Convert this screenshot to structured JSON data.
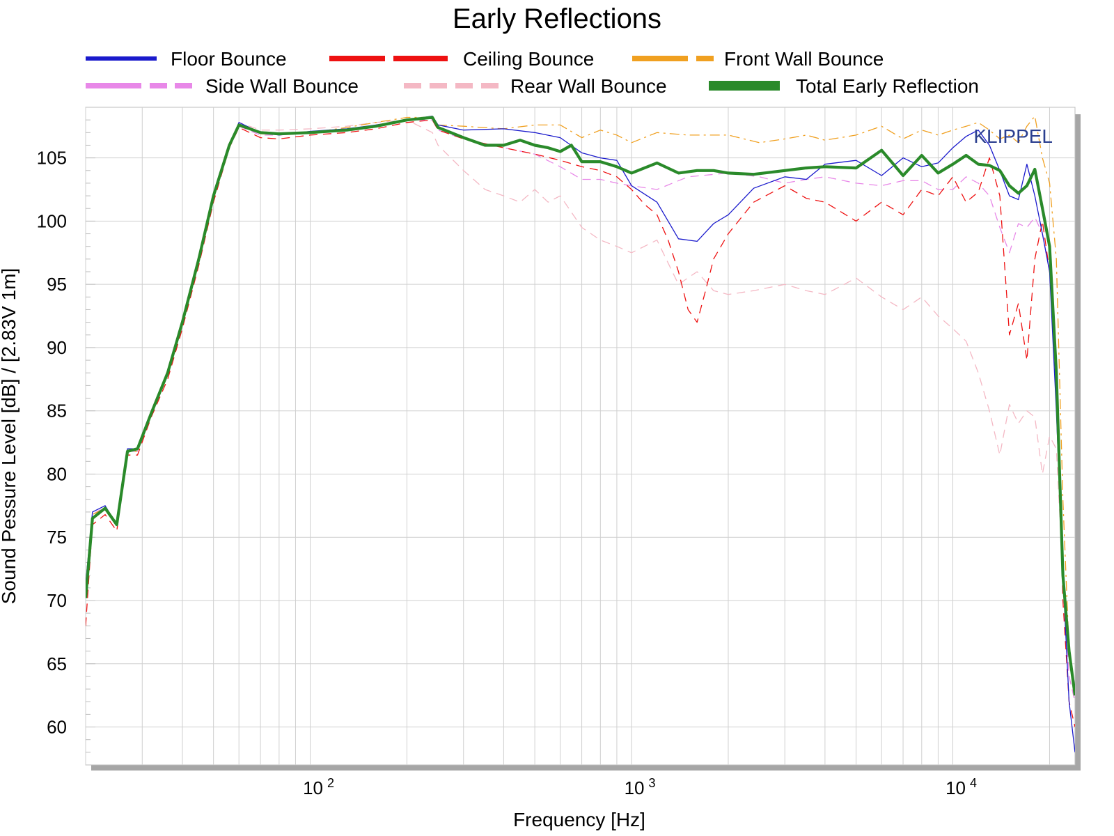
{
  "chart_data": {
    "type": "line",
    "title": "Early Reflections",
    "xlabel": "Frequency [Hz]",
    "ylabel": "Sound Pessure Level [dB]  / [2.83V 1m]",
    "x_scale": "log",
    "xlim": [
      20,
      24000
    ],
    "ylim": [
      57,
      109
    ],
    "y_ticks": [
      60,
      65,
      70,
      75,
      80,
      85,
      90,
      95,
      100,
      105
    ],
    "x_ticks": [
      {
        "value": 100,
        "base": "10",
        "exp": "2"
      },
      {
        "value": 1000,
        "base": "10",
        "exp": "3"
      },
      {
        "value": 10000,
        "base": "10",
        "exp": "4"
      }
    ],
    "grid": true,
    "legend_position": "top",
    "brand": "KLIPPEL",
    "series": [
      {
        "name": "Floor Bounce",
        "color": "#1a1acc",
        "style": "solid",
        "width": 1.3,
        "x": [
          20,
          21,
          23,
          25,
          27,
          29,
          32,
          36,
          40,
          45,
          50,
          56,
          60,
          70,
          80,
          100,
          130,
          160,
          200,
          240,
          250,
          300,
          400,
          500,
          600,
          700,
          800,
          900,
          1000,
          1200,
          1400,
          1600,
          1800,
          2000,
          2400,
          3000,
          3500,
          4000,
          5000,
          6000,
          7000,
          8000,
          9000,
          10000,
          11000,
          12000,
          13000,
          14000,
          15000,
          16000,
          17000,
          18000,
          19000,
          20000,
          21000,
          22000,
          23000,
          24000
        ],
        "y": [
          71.3,
          77,
          77.5,
          76,
          82,
          82,
          85,
          88,
          92,
          97,
          102,
          106,
          107.8,
          107,
          106.8,
          107.1,
          107.3,
          107.6,
          108,
          108.3,
          107.6,
          107.2,
          107.3,
          107,
          106.6,
          105.4,
          105,
          104.8,
          102.8,
          101.5,
          98.6,
          98.4,
          99.8,
          100.5,
          102.6,
          103.5,
          103.3,
          104.5,
          104.8,
          103.6,
          105,
          104.3,
          104.6,
          105.8,
          106.7,
          107.2,
          106,
          104,
          102,
          101.7,
          104.5,
          102,
          99,
          96,
          85,
          72,
          62,
          58
        ]
      },
      {
        "name": "Ceiling Bounce",
        "color": "#ee1111",
        "style": "dashed",
        "width": 1.3,
        "x": [
          20,
          21,
          23,
          25,
          27,
          29,
          32,
          36,
          40,
          45,
          50,
          56,
          60,
          70,
          80,
          100,
          130,
          160,
          200,
          240,
          250,
          300,
          400,
          500,
          600,
          700,
          800,
          900,
          1000,
          1100,
          1200,
          1300,
          1400,
          1500,
          1600,
          1700,
          1800,
          2000,
          2400,
          3000,
          3500,
          4000,
          5000,
          6000,
          7000,
          8000,
          9000,
          10000,
          11000,
          12000,
          13000,
          14000,
          15000,
          16000,
          17000,
          18000,
          19000,
          20000,
          21000,
          22000,
          23000,
          24000
        ],
        "y": [
          68,
          76,
          76.8,
          75.5,
          81.5,
          81.5,
          84.5,
          87.5,
          91.5,
          96.5,
          101.5,
          105.8,
          107.4,
          106.6,
          106.5,
          106.8,
          107,
          107.3,
          107.8,
          108,
          107.2,
          106.5,
          105.8,
          105.3,
          104.8,
          104.3,
          104,
          103.5,
          102.5,
          101.3,
          100.5,
          98.5,
          96,
          93,
          92,
          94.5,
          97,
          99,
          101.5,
          102.8,
          101.8,
          101.5,
          100,
          101.5,
          100.5,
          102.5,
          102,
          103.5,
          101.5,
          102.3,
          105,
          102,
          91,
          93.5,
          89,
          97,
          100,
          96,
          88,
          70,
          62,
          60
        ]
      },
      {
        "name": "Front Wall Bounce",
        "color": "#f0a020",
        "style": "dashdot",
        "width": 1.3,
        "x": [
          20,
          21,
          23,
          25,
          27,
          29,
          32,
          36,
          40,
          45,
          50,
          56,
          60,
          70,
          80,
          100,
          130,
          160,
          200,
          240,
          250,
          300,
          400,
          500,
          600,
          700,
          800,
          900,
          1000,
          1200,
          1500,
          2000,
          2500,
          3000,
          3500,
          4000,
          5000,
          6000,
          7000,
          8000,
          9000,
          10000,
          11000,
          12000,
          13000,
          14000,
          15000,
          16000,
          17000,
          18000,
          19000,
          20000,
          21000,
          22000,
          23000,
          24000
        ],
        "y": [
          70.5,
          76.8,
          77.3,
          76,
          81.8,
          81.8,
          84.8,
          88,
          92,
          97,
          102,
          105.8,
          107.7,
          106.9,
          106.9,
          107,
          107.4,
          107.8,
          108.2,
          108.2,
          107.6,
          107.5,
          107.3,
          107.6,
          107.6,
          106.6,
          107.2,
          106.8,
          106.2,
          107,
          106.8,
          106.8,
          106.2,
          106.5,
          106.8,
          106.4,
          106.8,
          107.5,
          106.5,
          107.2,
          106.8,
          107.2,
          107.5,
          107.8,
          107.2,
          106.5,
          106.8,
          106.2,
          107.5,
          108.3,
          105,
          103,
          97,
          78,
          66,
          63
        ]
      },
      {
        "name": "Side Wall Bounce",
        "color": "#e888e8",
        "style": "dashed",
        "width": 1.3,
        "x": [
          20,
          21,
          23,
          25,
          27,
          29,
          32,
          36,
          40,
          45,
          50,
          56,
          60,
          70,
          80,
          100,
          130,
          160,
          200,
          240,
          250,
          300,
          400,
          500,
          600,
          700,
          800,
          900,
          1000,
          1200,
          1500,
          2000,
          2500,
          3000,
          3500,
          4000,
          5000,
          6000,
          7000,
          8000,
          9000,
          10000,
          11000,
          12000,
          13000,
          14000,
          15000,
          16000,
          17000,
          18000,
          19000,
          20000,
          21000,
          22000,
          23000,
          24000
        ],
        "y": [
          70.3,
          76.8,
          77.4,
          76,
          81.8,
          81.8,
          84.8,
          88,
          92,
          97,
          102,
          105.8,
          107.5,
          106.8,
          106.8,
          107,
          107.2,
          107.6,
          108,
          108,
          107.2,
          106.5,
          105.8,
          105.3,
          104.3,
          103.3,
          103.3,
          103,
          102.8,
          102.5,
          103.5,
          103.8,
          103.5,
          103,
          103.3,
          103.5,
          103,
          102.8,
          103.2,
          103.2,
          102.5,
          102.5,
          103.5,
          103,
          102,
          99.5,
          97.5,
          99.8,
          99.5,
          100.3,
          99,
          96,
          88,
          72,
          64,
          62
        ]
      },
      {
        "name": "Rear Wall Bounce",
        "color": "#f4b8c4",
        "style": "dashed",
        "width": 1.3,
        "x": [
          20,
          21,
          23,
          25,
          27,
          29,
          32,
          36,
          40,
          45,
          50,
          56,
          60,
          70,
          80,
          100,
          130,
          160,
          200,
          240,
          250,
          300,
          350,
          400,
          450,
          500,
          550,
          600,
          700,
          800,
          900,
          1000,
          1200,
          1400,
          1600,
          1800,
          2000,
          2400,
          3000,
          3500,
          4000,
          5000,
          6000,
          7000,
          8000,
          9000,
          10000,
          11000,
          12000,
          13000,
          14000,
          15000,
          16000,
          17000,
          18000,
          19000,
          20000,
          21000,
          22000,
          23000,
          24000
        ],
        "y": [
          70.3,
          76.8,
          77.4,
          76,
          81.8,
          81.8,
          84.8,
          88,
          92,
          97,
          102,
          106,
          107.8,
          107.2,
          107.2,
          107.3,
          107.5,
          107.8,
          108,
          107,
          106,
          104,
          102.5,
          102,
          101.5,
          102.5,
          101.5,
          102,
          99.5,
          98.5,
          98,
          97.5,
          98.5,
          95,
          96,
          94.5,
          94.2,
          94.5,
          95,
          94.5,
          94.2,
          95.5,
          94,
          93,
          94,
          92.5,
          91.5,
          90.5,
          88,
          85,
          81.5,
          85.5,
          84,
          85,
          84.5,
          80,
          83,
          82,
          72,
          64,
          62
        ]
      },
      {
        "name": "Total Early Reflection",
        "color": "#2a8a2a",
        "style": "solid",
        "width": 4.2,
        "x": [
          20,
          21,
          23,
          25,
          27,
          29,
          32,
          36,
          40,
          45,
          50,
          56,
          60,
          70,
          80,
          100,
          130,
          160,
          200,
          240,
          250,
          300,
          350,
          400,
          450,
          500,
          550,
          600,
          650,
          700,
          800,
          900,
          1000,
          1200,
          1400,
          1600,
          1800,
          2000,
          2400,
          3000,
          3500,
          4000,
          5000,
          6000,
          7000,
          8000,
          9000,
          10000,
          11000,
          12000,
          13000,
          14000,
          15000,
          16000,
          17000,
          18000,
          19000,
          20000,
          21000,
          22000,
          23000,
          24000
        ],
        "y": [
          70.2,
          76.5,
          77.3,
          76,
          81.8,
          82,
          84.8,
          88,
          92,
          97,
          102,
          106,
          107.6,
          107,
          106.9,
          107,
          107.2,
          107.5,
          108,
          108.2,
          107.4,
          106.6,
          106,
          106,
          106.4,
          106,
          105.8,
          105.5,
          106,
          104.7,
          104.7,
          104.3,
          103.8,
          104.6,
          103.8,
          104,
          104,
          103.8,
          103.7,
          104,
          104.2,
          104.3,
          104.2,
          105.6,
          103.6,
          105.2,
          103.8,
          104.5,
          105.2,
          104.5,
          104.4,
          104,
          102.8,
          102.2,
          102.8,
          104.1,
          101,
          98,
          88,
          72,
          66,
          62.5
        ]
      }
    ]
  }
}
